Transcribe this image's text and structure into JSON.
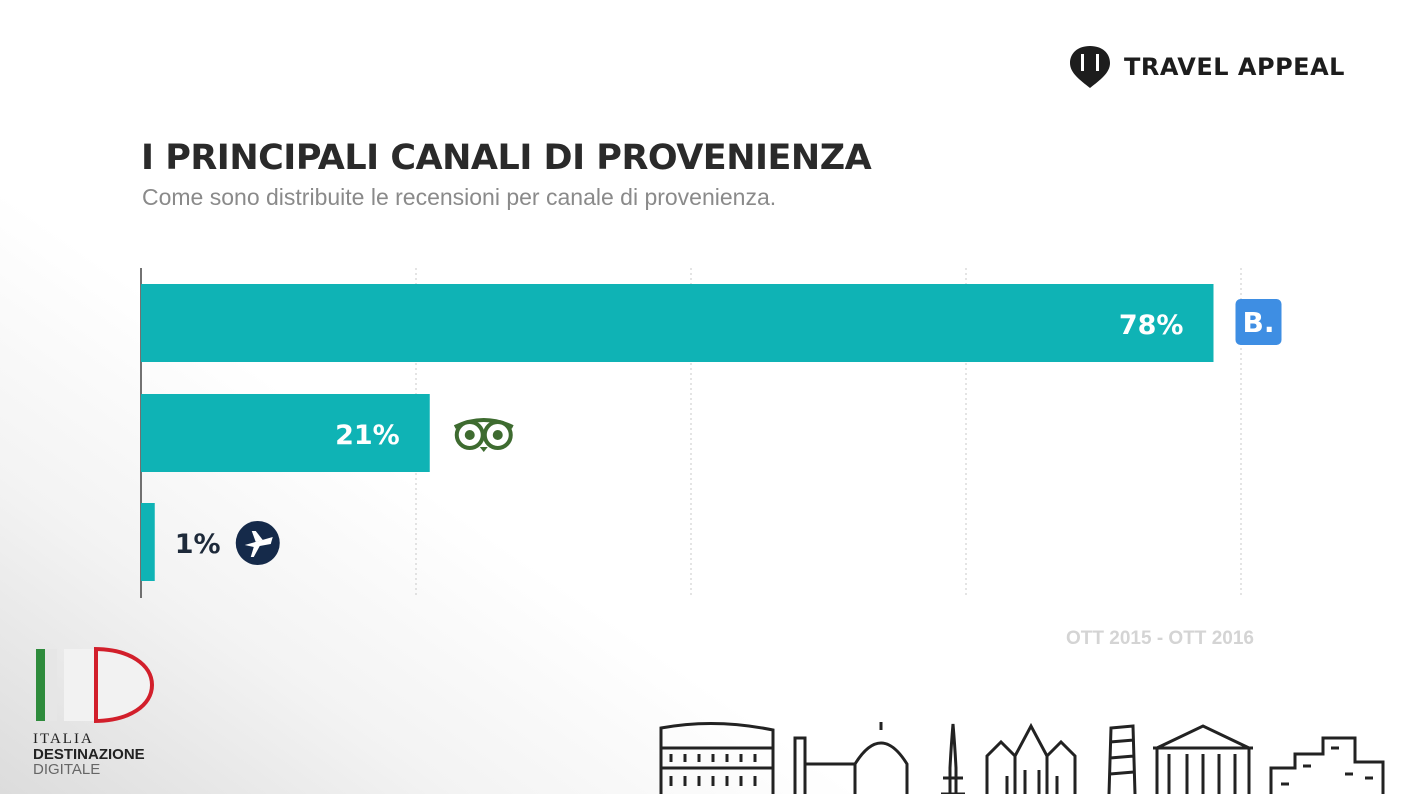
{
  "brand": {
    "name": "TRAVEL APPEAL",
    "icon": "map-pin-icon"
  },
  "title": "I PRINCIPALI CANALI DI PROVENIENZA",
  "subtitle": "Come sono distribuite le recensioni per canale di provenienza.",
  "period": "OTT  2015 - OTT 2016",
  "footer_logo": {
    "line1": "ITALIA",
    "line2": "DESTINAZIONE",
    "line3": "DIGITALE"
  },
  "colors": {
    "bar": "#0fb3b5",
    "title": "#2a2a2a",
    "subtitle": "#8a8a8a",
    "period": "#d4d4d4",
    "booking": "#3e8ee3",
    "tripadvisor": "#3e6b30",
    "expedia": "#152a4a"
  },
  "chart_data": {
    "type": "bar",
    "orientation": "horizontal",
    "categories": [
      "Booking.com",
      "TripAdvisor",
      "Expedia"
    ],
    "category_icons": [
      "booking-logo-icon",
      "tripadvisor-owl-icon",
      "expedia-plane-icon"
    ],
    "values": [
      78,
      21,
      1
    ],
    "labels": [
      "78%",
      "21%",
      "1%"
    ],
    "unit": "%",
    "xlim": [
      0,
      80
    ],
    "gridlines": [
      20,
      40,
      60,
      80
    ],
    "grid": true,
    "legend": "none"
  }
}
